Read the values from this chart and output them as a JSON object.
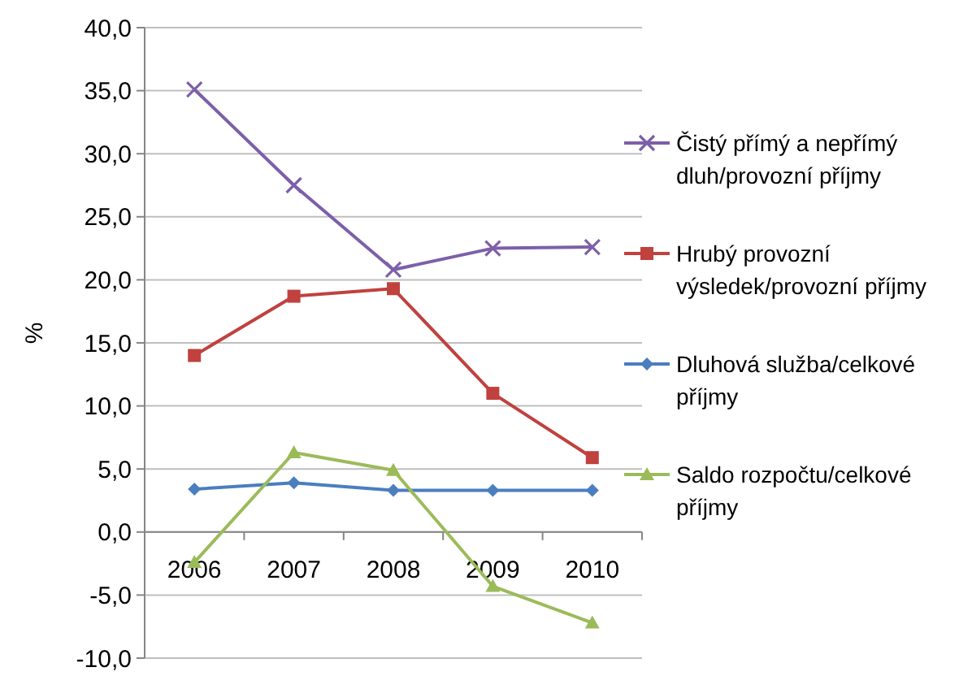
{
  "chart_data": {
    "type": "line",
    "ylabel": "%",
    "categories": [
      "2006",
      "2007",
      "2008",
      "2009",
      "2010"
    ],
    "ylim": [
      -10,
      40
    ],
    "yticks": [
      {
        "value": -10,
        "label": "-10,0"
      },
      {
        "value": -5,
        "label": "-5,0"
      },
      {
        "value": 0,
        "label": "0,0"
      },
      {
        "value": 5,
        "label": "5,0"
      },
      {
        "value": 10,
        "label": "10,0"
      },
      {
        "value": 15,
        "label": "15,0"
      },
      {
        "value": 20,
        "label": "20,0"
      },
      {
        "value": 25,
        "label": "25,0"
      },
      {
        "value": 30,
        "label": "30,0"
      },
      {
        "value": 35,
        "label": "35,0"
      },
      {
        "value": 40,
        "label": "40,0"
      }
    ],
    "grid": "y",
    "legend": "right",
    "series": [
      {
        "name": "Čistý přímý a nepřímý dluh/provozní příjmy",
        "color": "#7d5fa9",
        "marker": "cross",
        "values": [
          35.1,
          27.5,
          20.8,
          22.5,
          22.6
        ]
      },
      {
        "name": "Hrubý provozní výsledek/provozní příjmy",
        "color": "#c0413e",
        "marker": "square",
        "values": [
          14.0,
          18.7,
          19.3,
          11.0,
          5.9
        ]
      },
      {
        "name": "Dluhová služba/celkové příjmy",
        "color": "#4a7ebf",
        "marker": "diamond",
        "values": [
          3.4,
          3.9,
          3.3,
          3.3,
          3.3
        ]
      },
      {
        "name": "Saldo rozpočtu/celkové příjmy",
        "color": "#9bbb59",
        "marker": "triangle",
        "values": [
          -2.4,
          6.3,
          4.9,
          -4.3,
          -7.2
        ]
      }
    ]
  }
}
